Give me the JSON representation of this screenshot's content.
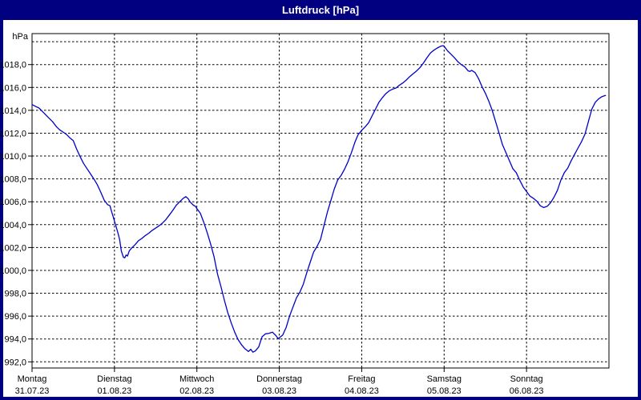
{
  "window": {
    "title": "Luftdruck [hPa]"
  },
  "colors": {
    "window_frame": "#000080",
    "title_text": "#ffffff",
    "plot_background": "#ffffff",
    "grid": "#000000",
    "line": "#0000CD",
    "label_text": "#000000"
  },
  "chart_data": {
    "type": "line",
    "title": "Luftdruck [hPa]",
    "y_axis_unit_label": "hPa",
    "ylabel": "hPa",
    "xlabel": "",
    "grid": "dashed",
    "legend": "none",
    "ylim": [
      991.5,
      1020.7
    ],
    "y_tick_step": 2,
    "y_ticks": [
      {
        "v": 1018,
        "label": "1018,0"
      },
      {
        "v": 1016,
        "label": "1016,0"
      },
      {
        "v": 1014,
        "label": "1014,0"
      },
      {
        "v": 1012,
        "label": "1012,0"
      },
      {
        "v": 1010,
        "label": "1010,0"
      },
      {
        "v": 1008,
        "label": "1008,0"
      },
      {
        "v": 1006,
        "label": "1006,0"
      },
      {
        "v": 1004,
        "label": "1004,0"
      },
      {
        "v": 1002,
        "label": "1002,0"
      },
      {
        "v": 1000,
        "label": "1000,0"
      },
      {
        "v": 998,
        "label": "998,0"
      },
      {
        "v": 996,
        "label": "996,0"
      },
      {
        "v": 994,
        "label": "994,0"
      },
      {
        "v": 992,
        "label": "992,0"
      }
    ],
    "y_grid_unlabeled": [
      1020
    ],
    "x_days": [
      {
        "name": "Montag",
        "date": "31.07.23"
      },
      {
        "name": "Dienstag",
        "date": "01.08.23"
      },
      {
        "name": "Mittwoch",
        "date": "02.08.23"
      },
      {
        "name": "Donnerstag",
        "date": "03.08.23"
      },
      {
        "name": "Freitag",
        "date": "04.08.23"
      },
      {
        "name": "Samstag",
        "date": "05.08.23"
      },
      {
        "name": "Sonntag",
        "date": "06.08.23"
      }
    ],
    "x_hours_range": [
      0,
      168
    ],
    "series": [
      {
        "name": "Luftdruck",
        "unit": "hPa",
        "color": "#0000CD",
        "points": [
          [
            0,
            1014.5
          ],
          [
            1,
            1014.35
          ],
          [
            2,
            1014.2
          ],
          [
            3,
            1013.9
          ],
          [
            4,
            1013.6
          ],
          [
            5,
            1013.3
          ],
          [
            6,
            1013.0
          ],
          [
            7,
            1012.6
          ],
          [
            8,
            1012.3
          ],
          [
            9,
            1012.1
          ],
          [
            10,
            1011.9
          ],
          [
            11,
            1011.6
          ],
          [
            12,
            1011.35
          ],
          [
            13,
            1010.6
          ],
          [
            14,
            1009.95
          ],
          [
            15,
            1009.35
          ],
          [
            16,
            1008.9
          ],
          [
            17,
            1008.45
          ],
          [
            18,
            1008.0
          ],
          [
            19,
            1007.5
          ],
          [
            20,
            1006.85
          ],
          [
            21,
            1006.15
          ],
          [
            22,
            1005.75
          ],
          [
            22.7,
            1005.65
          ],
          [
            23,
            1005.3
          ],
          [
            24,
            1004.3
          ],
          [
            25,
            1003.3
          ],
          [
            25.5,
            1002.7
          ],
          [
            26,
            1001.7
          ],
          [
            26.6,
            1001.15
          ],
          [
            27,
            1001.1
          ],
          [
            27.4,
            1001.35
          ],
          [
            27.8,
            1001.25
          ],
          [
            28.3,
            1001.7
          ],
          [
            29,
            1001.95
          ],
          [
            30,
            1002.25
          ],
          [
            31,
            1002.6
          ],
          [
            32,
            1002.8
          ],
          [
            33,
            1003.05
          ],
          [
            34,
            1003.25
          ],
          [
            35,
            1003.5
          ],
          [
            36,
            1003.7
          ],
          [
            37,
            1003.9
          ],
          [
            38,
            1004.15
          ],
          [
            39,
            1004.45
          ],
          [
            40,
            1004.85
          ],
          [
            41,
            1005.25
          ],
          [
            42,
            1005.7
          ],
          [
            43,
            1006.0
          ],
          [
            44,
            1006.3
          ],
          [
            44.8,
            1006.45
          ],
          [
            45.5,
            1006.25
          ],
          [
            46,
            1006.0
          ],
          [
            47,
            1005.7
          ],
          [
            47.6,
            1005.6
          ],
          [
            48,
            1005.4
          ],
          [
            49,
            1005.0
          ],
          [
            50,
            1004.2
          ],
          [
            51,
            1003.3
          ],
          [
            52,
            1002.3
          ],
          [
            53,
            1001.2
          ],
          [
            54,
            999.7
          ],
          [
            55,
            998.6
          ],
          [
            56,
            997.4
          ],
          [
            57,
            996.3
          ],
          [
            58,
            995.4
          ],
          [
            59,
            994.6
          ],
          [
            60,
            993.95
          ],
          [
            61,
            993.5
          ],
          [
            62,
            993.15
          ],
          [
            63,
            992.9
          ],
          [
            63.7,
            993.1
          ],
          [
            64.3,
            992.85
          ],
          [
            65,
            992.95
          ],
          [
            66,
            993.3
          ],
          [
            66.6,
            993.85
          ],
          [
            67,
            994.2
          ],
          [
            68,
            994.45
          ],
          [
            69,
            994.5
          ],
          [
            70,
            994.6
          ],
          [
            71,
            994.3
          ],
          [
            71.6,
            994.05
          ],
          [
            72,
            994.1
          ],
          [
            73,
            994.35
          ],
          [
            74,
            995.0
          ],
          [
            75,
            996.0
          ],
          [
            76,
            996.8
          ],
          [
            77,
            997.6
          ],
          [
            78,
            998.1
          ],
          [
            79,
            998.8
          ],
          [
            80,
            999.8
          ],
          [
            81,
            1000.7
          ],
          [
            82,
            1001.6
          ],
          [
            83,
            1002.1
          ],
          [
            84,
            1002.7
          ],
          [
            85,
            1003.9
          ],
          [
            86,
            1005.1
          ],
          [
            87,
            1006.1
          ],
          [
            88,
            1007.1
          ],
          [
            89,
            1007.9
          ],
          [
            90,
            1008.3
          ],
          [
            91,
            1008.85
          ],
          [
            92,
            1009.5
          ],
          [
            93,
            1010.3
          ],
          [
            94,
            1011.2
          ],
          [
            95,
            1011.9
          ],
          [
            95.5,
            1012.05
          ],
          [
            96,
            1012.25
          ],
          [
            97,
            1012.55
          ],
          [
            98,
            1012.9
          ],
          [
            99,
            1013.5
          ],
          [
            100,
            1014.1
          ],
          [
            101,
            1014.7
          ],
          [
            102,
            1015.1
          ],
          [
            103,
            1015.45
          ],
          [
            104,
            1015.7
          ],
          [
            105,
            1015.85
          ],
          [
            106,
            1015.95
          ],
          [
            107,
            1016.2
          ],
          [
            108,
            1016.4
          ],
          [
            109,
            1016.65
          ],
          [
            110,
            1016.95
          ],
          [
            111,
            1017.2
          ],
          [
            112,
            1017.45
          ],
          [
            113,
            1017.75
          ],
          [
            114,
            1018.15
          ],
          [
            115,
            1018.6
          ],
          [
            116,
            1019.0
          ],
          [
            117,
            1019.25
          ],
          [
            118,
            1019.45
          ],
          [
            119,
            1019.6
          ],
          [
            119.7,
            1019.65
          ],
          [
            120,
            1019.6
          ],
          [
            121,
            1019.2
          ],
          [
            122,
            1018.9
          ],
          [
            123,
            1018.6
          ],
          [
            124,
            1018.25
          ],
          [
            125,
            1018.0
          ],
          [
            126,
            1017.8
          ],
          [
            127,
            1017.45
          ],
          [
            127.5,
            1017.4
          ],
          [
            128,
            1017.5
          ],
          [
            129,
            1017.3
          ],
          [
            130,
            1016.8
          ],
          [
            131,
            1016.1
          ],
          [
            132,
            1015.5
          ],
          [
            133,
            1014.8
          ],
          [
            134,
            1014.0
          ],
          [
            135,
            1013.0
          ],
          [
            136,
            1012.0
          ],
          [
            137,
            1011.0
          ],
          [
            138,
            1010.3
          ],
          [
            139,
            1009.6
          ],
          [
            140,
            1008.9
          ],
          [
            141,
            1008.55
          ],
          [
            142,
            1007.9
          ],
          [
            143,
            1007.3
          ],
          [
            144,
            1006.9
          ],
          [
            145,
            1006.5
          ],
          [
            146,
            1006.3
          ],
          [
            147,
            1006.05
          ],
          [
            148,
            1005.65
          ],
          [
            149,
            1005.5
          ],
          [
            150,
            1005.6
          ],
          [
            151,
            1005.9
          ],
          [
            152,
            1006.4
          ],
          [
            153,
            1007.0
          ],
          [
            154,
            1007.9
          ],
          [
            155,
            1008.55
          ],
          [
            156,
            1008.95
          ],
          [
            157,
            1009.6
          ],
          [
            158,
            1010.15
          ],
          [
            159,
            1010.7
          ],
          [
            160,
            1011.25
          ],
          [
            161,
            1011.9
          ],
          [
            162,
            1013.0
          ],
          [
            163,
            1014.1
          ],
          [
            164,
            1014.7
          ],
          [
            165,
            1015.0
          ],
          [
            166,
            1015.2
          ],
          [
            167,
            1015.3
          ]
        ]
      }
    ]
  }
}
